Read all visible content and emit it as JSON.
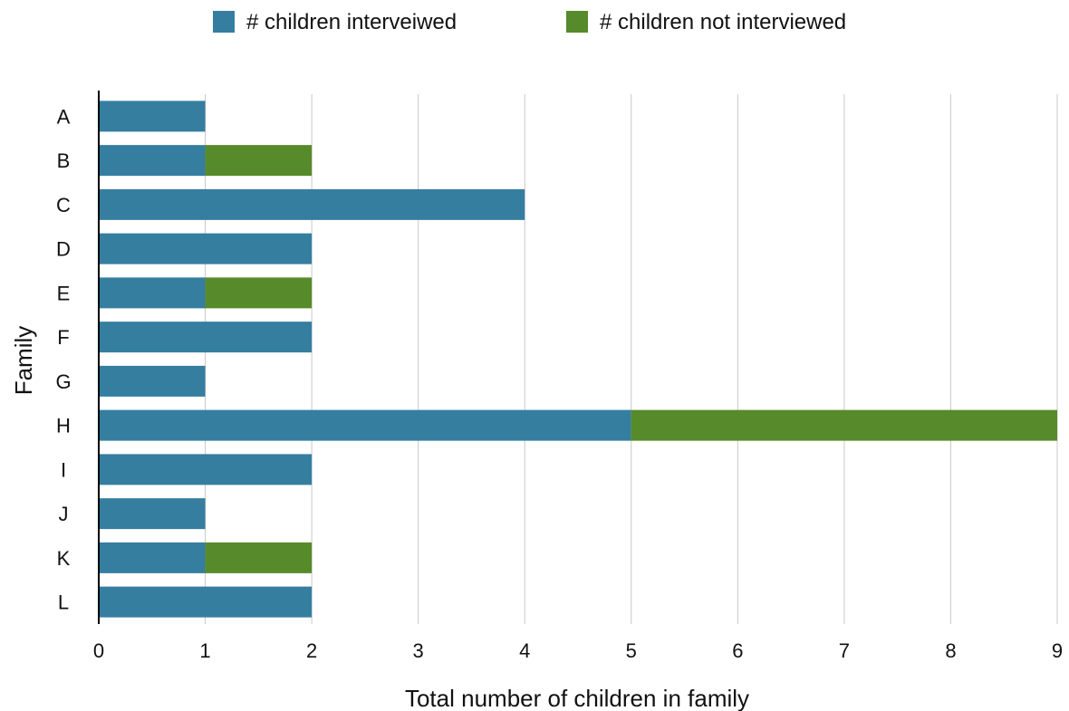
{
  "chart_data": {
    "type": "bar",
    "orientation": "horizontal",
    "stacked": true,
    "categories": [
      "A",
      "B",
      "C",
      "D",
      "E",
      "F",
      "G",
      "H",
      "I",
      "J",
      "K",
      "L"
    ],
    "series": [
      {
        "name": "# children interveiwed",
        "color": "#357ea0",
        "values": [
          1,
          1,
          4,
          2,
          1,
          2,
          1,
          5,
          2,
          1,
          1,
          2
        ]
      },
      {
        "name": "# children not interviewed",
        "color": "#578a2a",
        "values": [
          0,
          1,
          0,
          0,
          1,
          0,
          0,
          4,
          0,
          0,
          1,
          0
        ]
      }
    ],
    "xlabel": "Total number of children in family",
    "ylabel": "Family",
    "xlim": [
      0,
      9
    ],
    "xticks": [
      "0",
      "1",
      "2",
      "3",
      "4",
      "5",
      "6",
      "7",
      "8",
      "9"
    ],
    "grid": true,
    "legend_position": "top"
  }
}
